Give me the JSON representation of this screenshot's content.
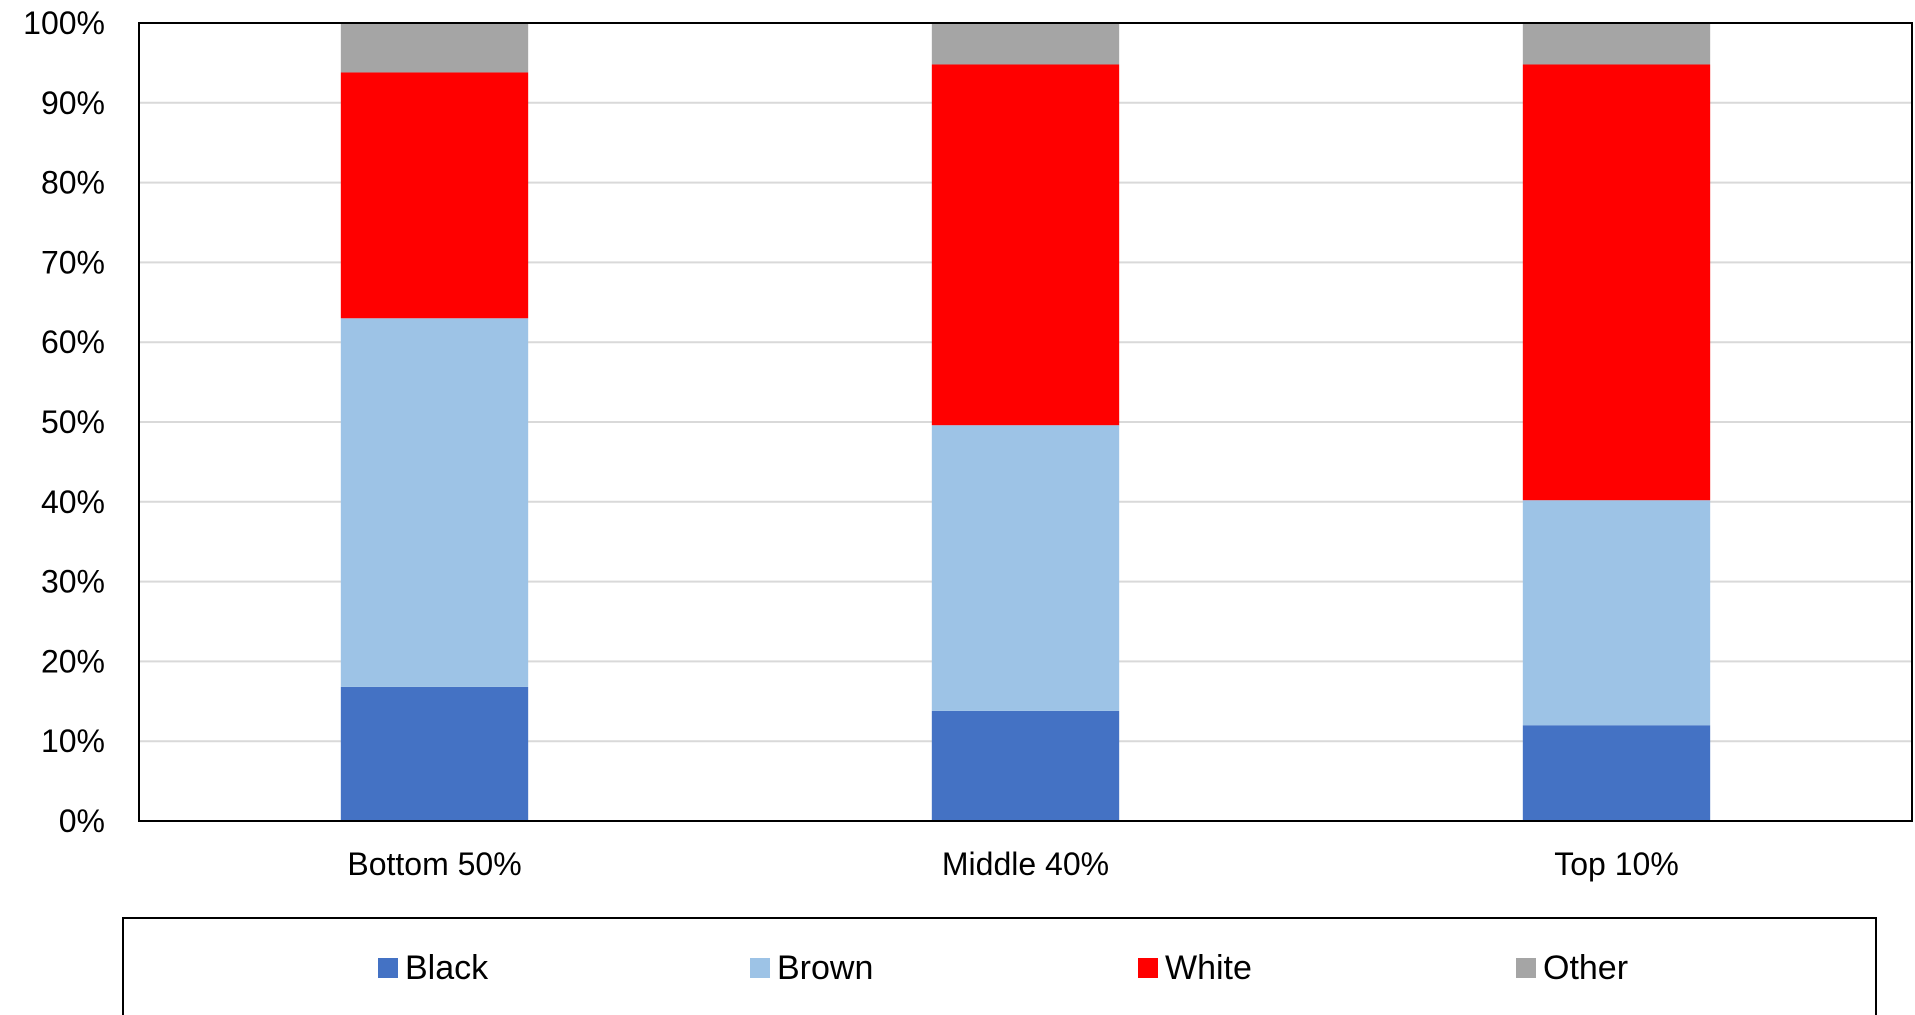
{
  "chart_data": {
    "type": "bar",
    "stacked": true,
    "title": "",
    "xlabel": "",
    "ylabel": "",
    "categories": [
      "Bottom 50%",
      "Middle 40%",
      "Top 10%"
    ],
    "series": [
      {
        "name": "Black",
        "color": "#4472C4",
        "values": [
          16.8,
          13.8,
          12.0
        ]
      },
      {
        "name": "Brown",
        "color": "#9DC3E6",
        "values": [
          46.2,
          35.8,
          28.2
        ]
      },
      {
        "name": "White",
        "color": "#FF0000",
        "values": [
          30.8,
          45.2,
          54.6
        ]
      },
      {
        "name": "Other",
        "color": "#A5A5A5",
        "values": [
          6.2,
          5.2,
          5.2
        ]
      }
    ],
    "ylim": [
      0,
      100
    ],
    "yticks": [
      "0%",
      "10%",
      "20%",
      "30%",
      "40%",
      "50%",
      "60%",
      "70%",
      "80%",
      "90%",
      "100%"
    ],
    "grid": true,
    "legend_position": "bottom"
  }
}
